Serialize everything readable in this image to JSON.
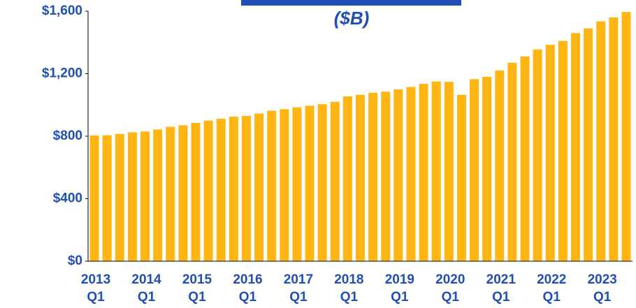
{
  "chart_data": {
    "type": "bar",
    "subtitle": "($B)",
    "categories": [
      "2013\nQ1",
      null,
      null,
      null,
      "2014\nQ1",
      null,
      null,
      null,
      "2015\nQ1",
      null,
      null,
      null,
      "2016\nQ1",
      null,
      null,
      null,
      "2017\nQ1",
      null,
      null,
      null,
      "2018\nQ1",
      null,
      null,
      null,
      "2019\nQ1",
      null,
      null,
      null,
      "2020\nQ1",
      null,
      null,
      null,
      "2021\nQ1",
      null,
      null,
      null,
      "2022\nQ1",
      null,
      null,
      null,
      "2023\nQ1",
      null,
      null
    ],
    "values": [
      805,
      806,
      815,
      825,
      830,
      843,
      860,
      870,
      885,
      900,
      912,
      925,
      930,
      945,
      963,
      973,
      985,
      995,
      1005,
      1020,
      1055,
      1065,
      1078,
      1085,
      1100,
      1115,
      1135,
      1150,
      1148,
      1065,
      1165,
      1180,
      1220,
      1270,
      1310,
      1355,
      1385,
      1410,
      1460,
      1490,
      1535,
      1560,
      1595
    ],
    "color": "#ffb612",
    "ylim": [
      0,
      1600
    ],
    "yticks": [
      {
        "value": 0,
        "label": "$0"
      },
      {
        "value": 400,
        "label": "$400"
      },
      {
        "value": 800,
        "label": "$800"
      },
      {
        "value": 1200,
        "label": "$1,200"
      },
      {
        "value": 1600,
        "label": "$1,600"
      }
    ]
  }
}
